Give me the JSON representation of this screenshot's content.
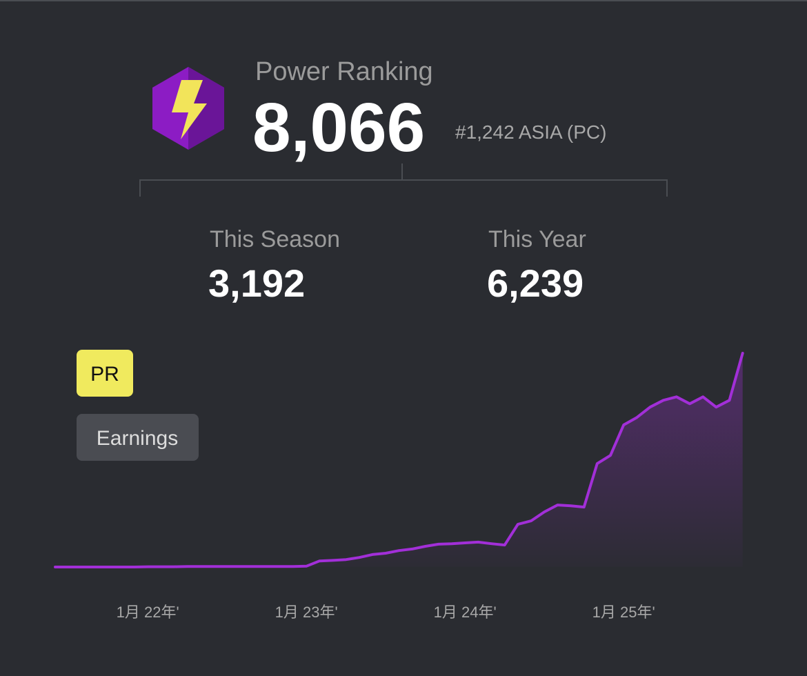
{
  "header": {
    "title": "Power Ranking",
    "value": "8,066",
    "rank": "#1,242 ASIA (PC)"
  },
  "stats": [
    {
      "label": "This Season",
      "value": "3,192"
    },
    {
      "label": "This Year",
      "value": "6,239"
    }
  ],
  "tabs": [
    {
      "label": "PR",
      "active": true
    },
    {
      "label": "Earnings",
      "active": false
    }
  ],
  "chart_data": {
    "type": "line",
    "x": [
      "2021-06",
      "2021-07",
      "2021-08",
      "2021-09",
      "2021-10",
      "2021-11",
      "2021-12",
      "2022-01",
      "2022-02",
      "2022-03",
      "2022-04",
      "2022-05",
      "2022-06",
      "2022-07",
      "2022-08",
      "2022-09",
      "2022-10",
      "2022-11",
      "2022-12",
      "2023-01",
      "2023-02",
      "2023-03",
      "2023-04",
      "2023-05",
      "2023-06",
      "2023-07",
      "2023-08",
      "2023-09",
      "2023-10",
      "2023-11",
      "2023-12",
      "2024-01",
      "2024-02",
      "2024-03",
      "2024-04",
      "2024-05",
      "2024-06",
      "2024-07",
      "2024-08",
      "2024-09",
      "2024-10",
      "2024-11",
      "2024-12",
      "2025-01",
      "2025-02",
      "2025-03",
      "2025-04",
      "2025-05",
      "2025-06",
      "2025-07",
      "2025-08",
      "2025-09",
      "2025-10"
    ],
    "series": [
      {
        "color": "#a22fd8",
        "values": [
          0,
          0,
          0,
          0,
          0,
          0,
          0,
          10,
          10,
          10,
          20,
          20,
          20,
          20,
          20,
          20,
          20,
          20,
          20,
          30,
          230,
          250,
          280,
          360,
          470,
          520,
          620,
          680,
          780,
          860,
          880,
          910,
          940,
          880,
          830,
          1610,
          1740,
          2080,
          2340,
          2310,
          2260,
          3900,
          4210,
          5360,
          5640,
          6030,
          6290,
          6420,
          6160,
          6420,
          6030,
          6290,
          8066
        ]
      }
    ],
    "xticks": [
      {
        "value": "2022-01",
        "label": "1月 22年'"
      },
      {
        "value": "2023-01",
        "label": "1月 23年'"
      },
      {
        "value": "2024-01",
        "label": "1月 24年'"
      },
      {
        "value": "2025-01",
        "label": "1月 25年'"
      }
    ]
  }
}
